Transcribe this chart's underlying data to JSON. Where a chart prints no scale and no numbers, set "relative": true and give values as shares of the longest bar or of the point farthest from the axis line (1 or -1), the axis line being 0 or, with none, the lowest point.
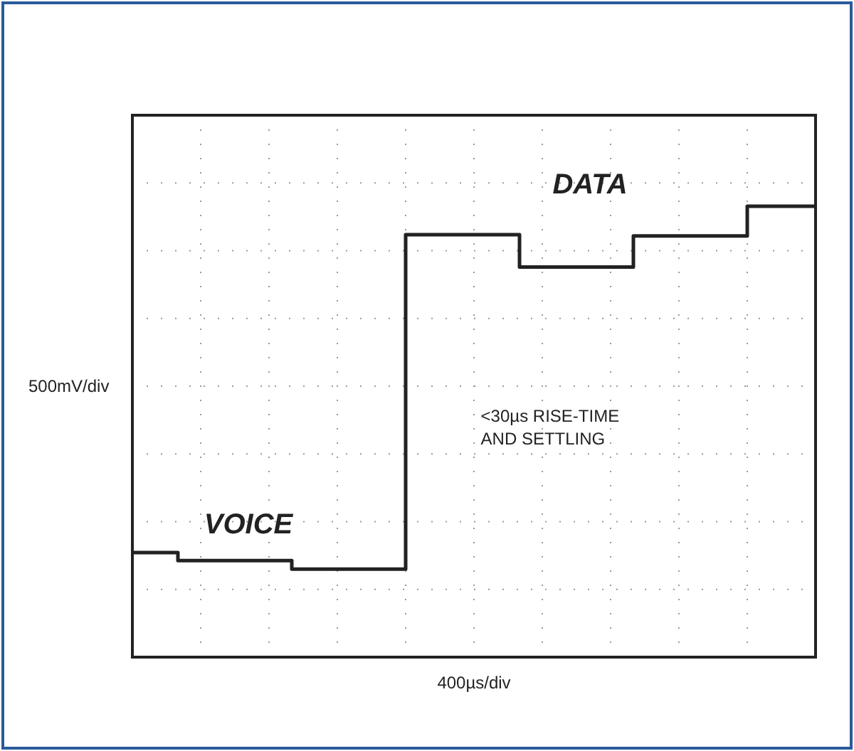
{
  "chart_data": {
    "type": "step",
    "relative": true,
    "ylabel": "500mV/div",
    "categories": [
      null,
      null,
      null,
      null,
      null,
      null,
      null,
      null,
      null,
      null,
      null,
      null,
      null,
      null,
      null,
      null,
      null,
      null,
      null,
      null,
      null,
      null,
      null,
      null,
      null,
      null,
      null,
      null,
      null,
      null,
      null
    ],
    "series": [
      {
        "color": "#222222",
        "values": [
          0.232,
          0.232,
          0.214,
          0.214,
          0.214,
          0.214,
          0.214,
          0.195,
          0.195,
          0.195,
          0.195,
          0.195,
          0.937,
          0.937,
          0.937,
          0.937,
          0.937,
          0.865,
          0.865,
          0.865,
          0.865,
          0.865,
          0.934,
          0.934,
          0.934,
          0.934,
          0.934,
          1,
          1,
          1,
          1
        ]
      }
    ],
    "annotations": [
      "DATA",
      "VOICE",
      "<30µs RISE-TIME AND SETTLING",
      "400µs/div"
    ],
    "grid": true
  }
}
